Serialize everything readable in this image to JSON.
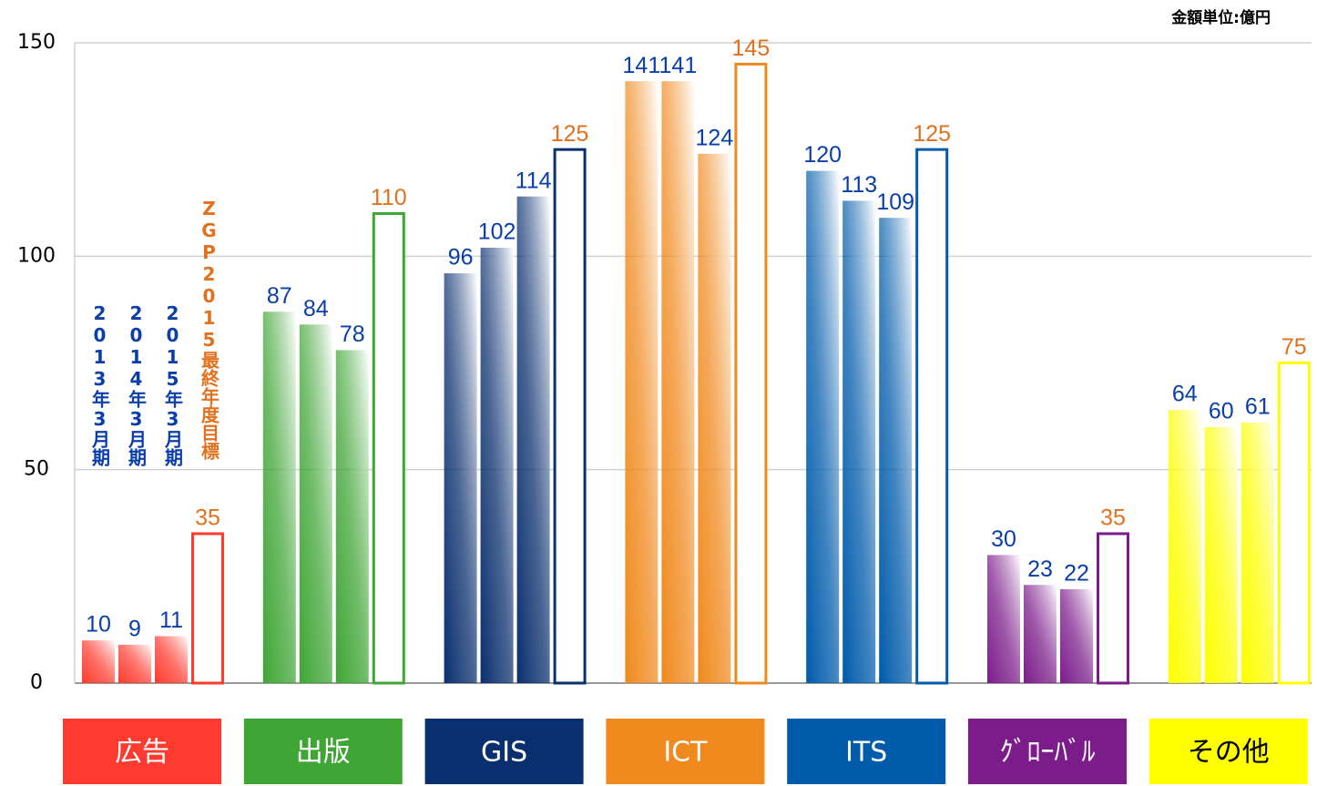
{
  "chart_data": {
    "type": "bar",
    "unit_label": "金額単位:億円",
    "categories": [
      "広告",
      "出版",
      "GIS",
      "ICT",
      "ITS",
      "ｸﾞﾛｰﾊﾞﾙ",
      "その他"
    ],
    "category_colors": [
      "#ff3b2f",
      "#3fa535",
      "#0a2f6e",
      "#f08a1e",
      "#005bab",
      "#7b1c8a",
      "#ffff00"
    ],
    "category_text_colors": [
      "#ffffff",
      "#ffffff",
      "#ffffff",
      "#ffffff",
      "#ffffff",
      "#ffffff",
      "#000000"
    ],
    "series": [
      {
        "name": "2013年3月期",
        "color": "#0a3ea8",
        "values": [
          10,
          87,
          96,
          141,
          120,
          30,
          64
        ]
      },
      {
        "name": "2014年3月期",
        "color": "#0a3ea8",
        "values": [
          9,
          84,
          102,
          141,
          113,
          23,
          60
        ]
      },
      {
        "name": "2015年3月期",
        "color": "#0a3ea8",
        "values": [
          11,
          78,
          114,
          124,
          109,
          22,
          61
        ]
      },
      {
        "name": "ZGP2015最終年度目標",
        "color": "#e2711d",
        "values": [
          35,
          110,
          125,
          145,
          125,
          35,
          75
        ]
      }
    ],
    "ylim": [
      0,
      150
    ],
    "yticks": [
      0,
      50,
      100,
      150
    ],
    "grid": true
  }
}
